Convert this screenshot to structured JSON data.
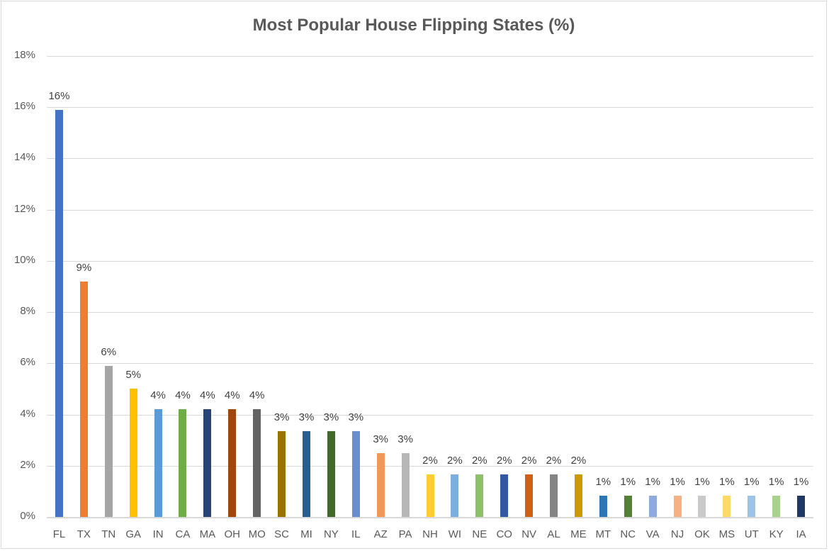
{
  "chart_data": {
    "type": "bar",
    "title": "Most Popular House Flipping States (%)",
    "xlabel": "",
    "ylabel": "",
    "ylim": [
      0,
      18
    ],
    "yticks": [
      "0%",
      "2%",
      "4%",
      "6%",
      "8%",
      "10%",
      "12%",
      "14%",
      "16%",
      "18%"
    ],
    "grid": true,
    "legend": null,
    "categories": [
      "FL",
      "TX",
      "TN",
      "GA",
      "IN",
      "CA",
      "MA",
      "OH",
      "MO",
      "SC",
      "MI",
      "NY",
      "IL",
      "AZ",
      "PA",
      "NH",
      "WI",
      "NE",
      "CO",
      "NV",
      "AL",
      "ME",
      "MT",
      "NC",
      "VA",
      "NJ",
      "OK",
      "MS",
      "UT",
      "KY",
      "IA"
    ],
    "values": [
      15.9,
      9.2,
      5.9,
      5.0,
      4.2,
      4.2,
      4.2,
      4.2,
      4.2,
      3.35,
      3.35,
      3.35,
      3.35,
      2.5,
      2.5,
      1.67,
      1.67,
      1.67,
      1.67,
      1.67,
      1.67,
      1.67,
      0.83,
      0.83,
      0.83,
      0.83,
      0.83,
      0.83,
      0.83,
      0.83,
      0.83
    ],
    "data_labels": [
      "16%",
      "9%",
      "6%",
      "5%",
      "4%",
      "4%",
      "4%",
      "4%",
      "4%",
      "3%",
      "3%",
      "3%",
      "3%",
      "3%",
      "3%",
      "2%",
      "2%",
      "2%",
      "2%",
      "2%",
      "2%",
      "2%",
      "1%",
      "1%",
      "1%",
      "1%",
      "1%",
      "1%",
      "1%",
      "1%",
      "1%"
    ],
    "colors": [
      "#4472c4",
      "#ed7d31",
      "#a5a5a5",
      "#ffc000",
      "#5b9bd5",
      "#70ad47",
      "#264478",
      "#9e480e",
      "#636363",
      "#997300",
      "#255e91",
      "#43682b",
      "#698ed0",
      "#f1975a",
      "#b7b7b7",
      "#ffcd33",
      "#7cafdd",
      "#8cc168",
      "#335aa1",
      "#d26012",
      "#848484",
      "#cc9a00",
      "#2e75b6",
      "#548235",
      "#8faadc",
      "#f4b183",
      "#c9c9c9",
      "#ffd966",
      "#9dc3e6",
      "#a9d18e",
      "#203864"
    ]
  }
}
